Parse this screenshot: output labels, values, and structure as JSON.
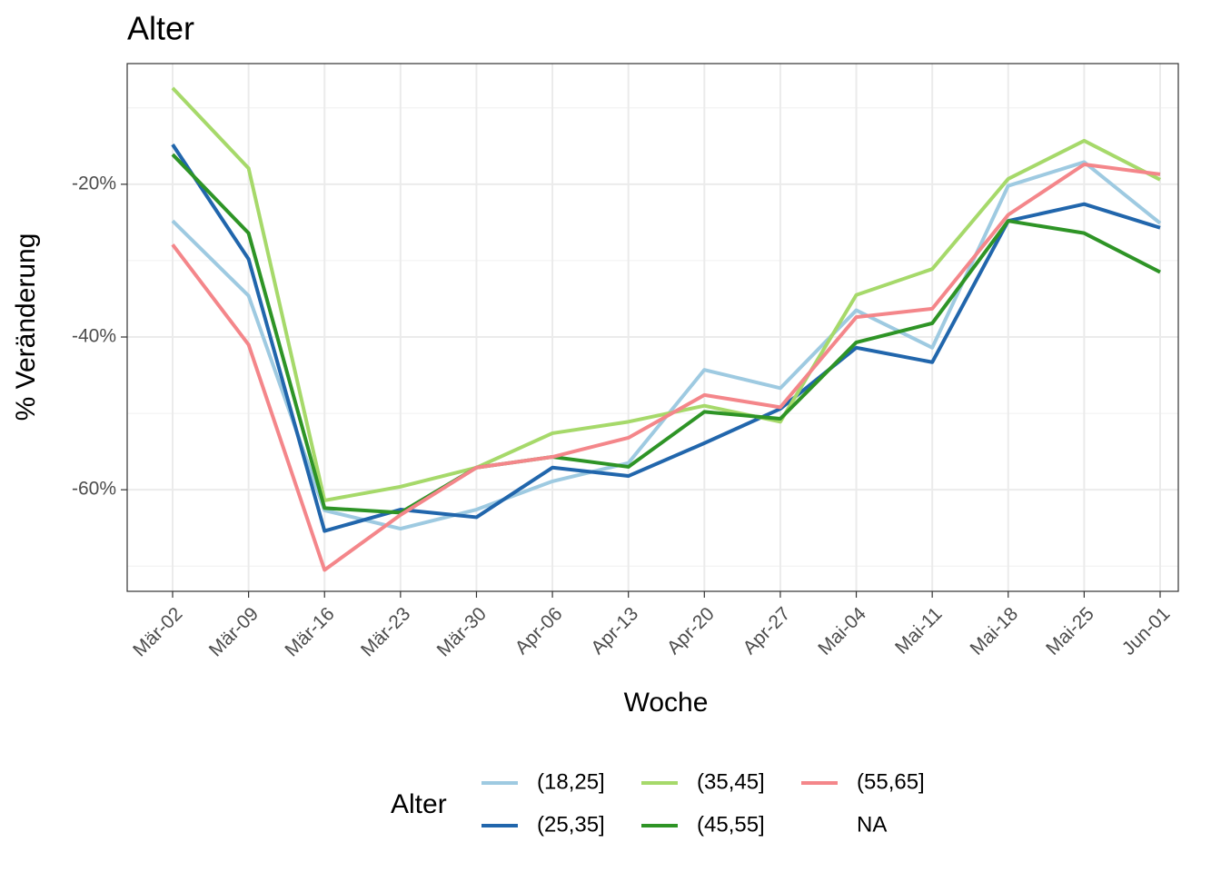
{
  "chart_data": {
    "type": "line",
    "title": "Alter",
    "x_label": "Woche",
    "y_label": "% Veränderung",
    "legend_title": "Alter",
    "legend_position": "bottom",
    "categories": [
      "Mär-02",
      "Mär-09",
      "Mär-16",
      "Mär-23",
      "Mär-30",
      "Apr-06",
      "Apr-13",
      "Apr-20",
      "Apr-27",
      "Mai-04",
      "Mai-11",
      "Mai-18",
      "Mai-25",
      "Jun-01"
    ],
    "series": [
      {
        "name": "(18,25]",
        "color": "#9ecae1",
        "values": [
          -24.8,
          -34.6,
          -62.7,
          -65.1,
          -62.6,
          -58.9,
          -56.5,
          -44.3,
          -46.7,
          -36.5,
          -41.4,
          -20.2,
          -17.1,
          -25.1
        ]
      },
      {
        "name": "(25,35]",
        "color": "#2166ac",
        "values": [
          -14.8,
          -29.8,
          -65.4,
          -62.6,
          -63.6,
          -57.1,
          -58.2,
          -53.9,
          -49.4,
          -41.4,
          -43.3,
          -24.8,
          -22.6,
          -25.7
        ]
      },
      {
        "name": "(35,45]",
        "color": "#a6d96a",
        "values": [
          -7.4,
          -17.9,
          -61.4,
          -59.6,
          -57.1,
          -52.6,
          -51.1,
          -49.0,
          -51.1,
          -34.5,
          -31.1,
          -19.3,
          -14.3,
          -19.4
        ]
      },
      {
        "name": "(45,55]",
        "color": "#2e9426",
        "values": [
          -16.1,
          -26.4,
          -62.4,
          -63.0,
          -57.1,
          -55.7,
          -57.0,
          -49.8,
          -50.7,
          -40.7,
          -38.2,
          -24.8,
          -26.4,
          -31.5
        ]
      },
      {
        "name": "(55,65]",
        "color": "#f4868a",
        "values": [
          -27.9,
          -41.0,
          -70.5,
          -63.3,
          -57.1,
          -55.7,
          -53.2,
          -47.6,
          -49.2,
          -37.4,
          -36.3,
          -24.0,
          -17.4,
          -18.7
        ]
      },
      {
        "name": "NA",
        "color": null,
        "values": [
          null,
          null,
          null,
          null,
          null,
          null,
          null,
          null,
          null,
          null,
          null,
          null,
          null,
          null
        ]
      }
    ],
    "ylim": [
      -73.3,
      -4.2
    ],
    "yticks": [
      {
        "value": -60,
        "label": "-60%"
      },
      {
        "value": -40,
        "label": "-40%"
      },
      {
        "value": -20,
        "label": "-20%"
      }
    ],
    "minor_yticks": [
      -70,
      -50,
      -30,
      -10
    ],
    "grid": true
  }
}
